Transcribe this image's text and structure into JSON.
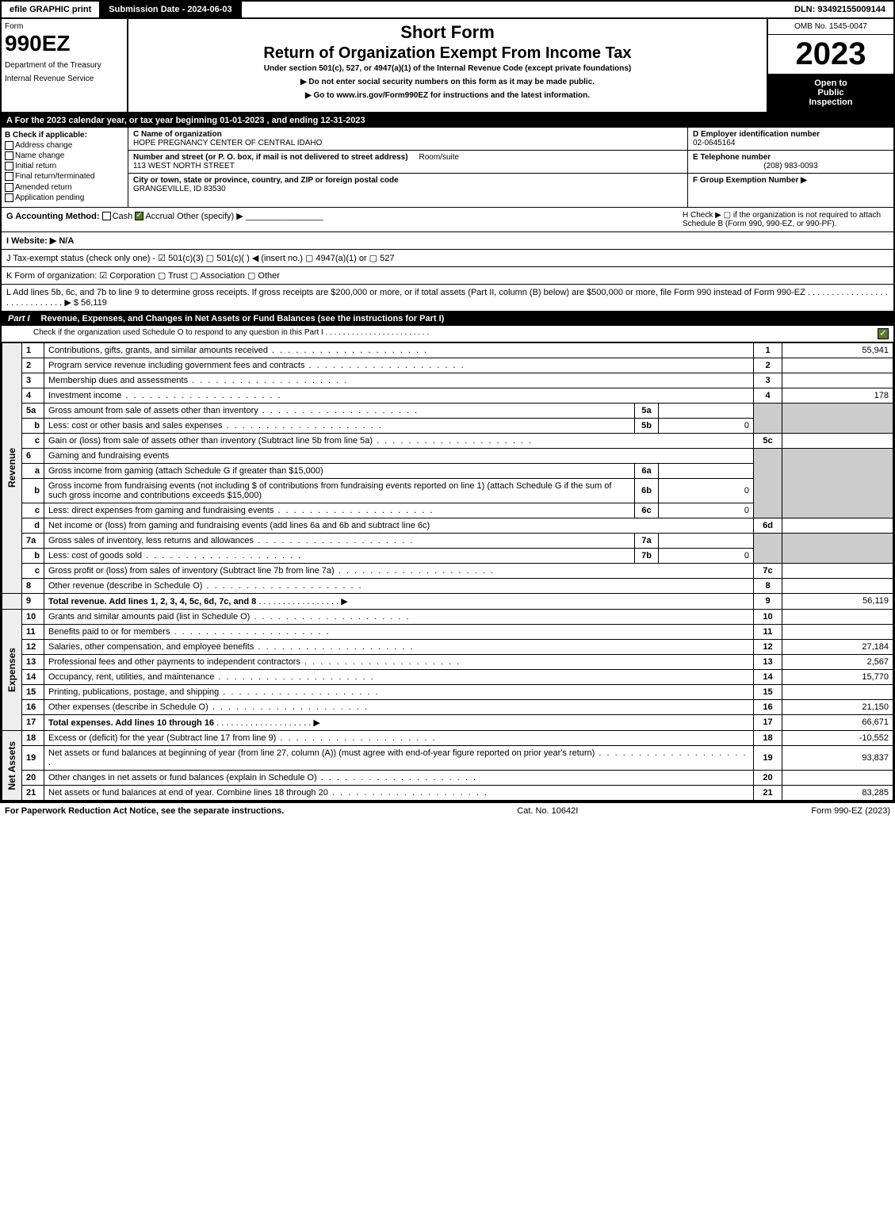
{
  "top": {
    "efile": "efile GRAPHIC print",
    "submission": "Submission Date - 2024-06-03",
    "dln": "DLN: 93492155009144"
  },
  "header": {
    "form_label": "Form",
    "form_number": "990EZ",
    "dept1": "Department of the Treasury",
    "dept2": "Internal Revenue Service",
    "short_form": "Short Form",
    "title": "Return of Organization Exempt From Income Tax",
    "subtitle": "Under section 501(c), 527, or 4947(a)(1) of the Internal Revenue Code (except private foundations)",
    "directive1": "▶ Do not enter social security numbers on this form as it may be made public.",
    "directive2": "▶ Go to www.irs.gov/Form990EZ for instructions and the latest information.",
    "omb": "OMB No. 1545-0047",
    "year": "2023",
    "inspect1": "Open to",
    "inspect2": "Public",
    "inspect3": "Inspection"
  },
  "rowA": "A  For the 2023 calendar year, or tax year beginning 01-01-2023 , and ending 12-31-2023",
  "sectionB": {
    "title": "B  Check if applicable:",
    "opts": [
      "Address change",
      "Name change",
      "Initial return",
      "Final return/terminated",
      "Amended return",
      "Application pending"
    ],
    "c_label": "C Name of organization",
    "c_name": "HOPE PREGNANCY CENTER OF CENTRAL IDAHO",
    "c_street_label": "Number and street (or P. O. box, if mail is not delivered to street address)",
    "c_room": "Room/suite",
    "c_street": "113 WEST NORTH STREET",
    "c_city_label": "City or town, state or province, country, and ZIP or foreign postal code",
    "c_city": "GRANGEVILLE, ID   83530",
    "d_label": "D Employer identification number",
    "d_val": "02-0645164",
    "e_label": "E Telephone number",
    "e_val": "(208) 983-0093",
    "f_label": "F Group Exemption Number   ▶"
  },
  "miscG": {
    "label": "G Accounting Method:",
    "cash": "Cash",
    "accrual": "Accrual",
    "other": "Other (specify) ▶",
    "h": "H  Check ▶   ▢  if the organization is not required to attach Schedule B (Form 990, 990-EZ, or 990-PF)."
  },
  "miscI": "I Website: ▶ N/A",
  "miscJ": "J Tax-exempt status (check only one) -  ☑ 501(c)(3)  ▢ 501(c)(  ) ◀ (insert no.)  ▢ 4947(a)(1) or  ▢ 527",
  "miscK": "K Form of organization:   ☑ Corporation   ▢ Trust   ▢ Association   ▢ Other",
  "miscL": "L Add lines 5b, 6c, and 7b to line 9 to determine gross receipts. If gross receipts are $200,000 or more, or if total assets (Part II, column (B) below) are $500,000 or more, file Form 990 instead of Form 990-EZ  . . . . . . . . . . . . . . . . . . . . . . . . . . . . .   ▶ $ 56,119",
  "part1": {
    "label": "Part I",
    "title": "Revenue, Expenses, and Changes in Net Assets or Fund Balances (see the instructions for Part I)",
    "check": "Check if the organization used Schedule O to respond to any question in this Part I . . . . . . . . . . . . . . . . . . . . . . . ."
  },
  "revenue_label": "Revenue",
  "expenses_label": "Expenses",
  "netassets_label": "Net Assets",
  "lines": {
    "l1": {
      "n": "1",
      "d": "Contributions, gifts, grants, and similar amounts received",
      "ln": "1",
      "v": "55,941"
    },
    "l2": {
      "n": "2",
      "d": "Program service revenue including government fees and contracts",
      "ln": "2",
      "v": ""
    },
    "l3": {
      "n": "3",
      "d": "Membership dues and assessments",
      "ln": "3",
      "v": ""
    },
    "l4": {
      "n": "4",
      "d": "Investment income",
      "ln": "4",
      "v": "178"
    },
    "l5a": {
      "n": "5a",
      "d": "Gross amount from sale of assets other than inventory",
      "in": "5a",
      "iv": ""
    },
    "l5b": {
      "n": "b",
      "d": "Less: cost or other basis and sales expenses",
      "in": "5b",
      "iv": "0"
    },
    "l5c": {
      "n": "c",
      "d": "Gain or (loss) from sale of assets other than inventory (Subtract line 5b from line 5a)",
      "ln": "5c",
      "v": ""
    },
    "l6": {
      "n": "6",
      "d": "Gaming and fundraising events"
    },
    "l6a": {
      "n": "a",
      "d": "Gross income from gaming (attach Schedule G if greater than $15,000)",
      "in": "6a",
      "iv": ""
    },
    "l6b": {
      "n": "b",
      "d": "Gross income from fundraising events (not including $                      of contributions from fundraising events reported on line 1) (attach Schedule G if the sum of such gross income and contributions exceeds $15,000)",
      "in": "6b",
      "iv": "0"
    },
    "l6c": {
      "n": "c",
      "d": "Less: direct expenses from gaming and fundraising events",
      "in": "6c",
      "iv": "0"
    },
    "l6d": {
      "n": "d",
      "d": "Net income or (loss) from gaming and fundraising events (add lines 6a and 6b and subtract line 6c)",
      "ln": "6d",
      "v": ""
    },
    "l7a": {
      "n": "7a",
      "d": "Gross sales of inventory, less returns and allowances",
      "in": "7a",
      "iv": ""
    },
    "l7b": {
      "n": "b",
      "d": "Less: cost of goods sold",
      "in": "7b",
      "iv": "0"
    },
    "l7c": {
      "n": "c",
      "d": "Gross profit or (loss) from sales of inventory (Subtract line 7b from line 7a)",
      "ln": "7c",
      "v": ""
    },
    "l8": {
      "n": "8",
      "d": "Other revenue (describe in Schedule O)",
      "ln": "8",
      "v": ""
    },
    "l9": {
      "n": "9",
      "d": "Total revenue. Add lines 1, 2, 3, 4, 5c, 6d, 7c, and 8",
      "ln": "9",
      "v": "56,119"
    },
    "l10": {
      "n": "10",
      "d": "Grants and similar amounts paid (list in Schedule O)",
      "ln": "10",
      "v": ""
    },
    "l11": {
      "n": "11",
      "d": "Benefits paid to or for members",
      "ln": "11",
      "v": ""
    },
    "l12": {
      "n": "12",
      "d": "Salaries, other compensation, and employee benefits",
      "ln": "12",
      "v": "27,184"
    },
    "l13": {
      "n": "13",
      "d": "Professional fees and other payments to independent contractors",
      "ln": "13",
      "v": "2,567"
    },
    "l14": {
      "n": "14",
      "d": "Occupancy, rent, utilities, and maintenance",
      "ln": "14",
      "v": "15,770"
    },
    "l15": {
      "n": "15",
      "d": "Printing, publications, postage, and shipping",
      "ln": "15",
      "v": ""
    },
    "l16": {
      "n": "16",
      "d": "Other expenses (describe in Schedule O)",
      "ln": "16",
      "v": "21,150"
    },
    "l17": {
      "n": "17",
      "d": "Total expenses. Add lines 10 through 16",
      "ln": "17",
      "v": "66,671"
    },
    "l18": {
      "n": "18",
      "d": "Excess or (deficit) for the year (Subtract line 17 from line 9)",
      "ln": "18",
      "v": "-10,552"
    },
    "l19": {
      "n": "19",
      "d": "Net assets or fund balances at beginning of year (from line 27, column (A)) (must agree with end-of-year figure reported on prior year's return)",
      "ln": "19",
      "v": "93,837"
    },
    "l20": {
      "n": "20",
      "d": "Other changes in net assets or fund balances (explain in Schedule O)",
      "ln": "20",
      "v": ""
    },
    "l21": {
      "n": "21",
      "d": "Net assets or fund balances at end of year. Combine lines 18 through 20",
      "ln": "21",
      "v": "83,285"
    }
  },
  "footer": {
    "left": "For Paperwork Reduction Act Notice, see the separate instructions.",
    "mid": "Cat. No. 10642I",
    "right": "Form 990-EZ (2023)"
  }
}
